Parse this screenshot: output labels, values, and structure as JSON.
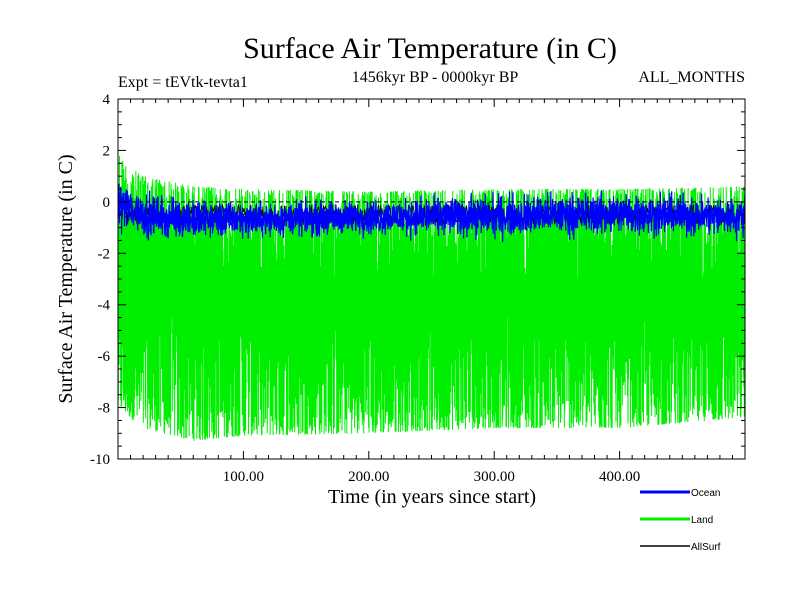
{
  "chart_data": {
    "type": "line",
    "title": "Surface Air Temperature (in C)",
    "subtitle": "1456kyr BP - 0000kyr BP",
    "experiment": "Expt = tEVtk-tevta1",
    "months": "ALL_MONTHS",
    "xlabel": "Time (in years since start)",
    "ylabel": "Surface Air Temperature (in C)",
    "xlim": [
      0,
      500
    ],
    "ylim": [
      -10,
      4
    ],
    "x_ticks": [
      100,
      200,
      300,
      400
    ],
    "x_tick_labels": [
      "100.00",
      "200.00",
      "300.00",
      "400.00"
    ],
    "y_ticks": [
      -10,
      -8,
      -6,
      -4,
      -2,
      0,
      2,
      4
    ],
    "y_tick_labels": [
      "-10",
      "-8",
      "-6",
      "-4",
      "-2",
      "0",
      "2",
      "4"
    ],
    "reference_line": 0,
    "legend_position": "bottom-right",
    "series": [
      {
        "name": "Land",
        "color": "#00ee00",
        "style": "dense-oscillation",
        "upper_envelope": {
          "x": [
            0,
            5,
            20,
            60,
            100,
            200,
            300,
            400,
            500
          ],
          "y": [
            2.0,
            1.5,
            1.0,
            0.6,
            0.5,
            0.4,
            0.5,
            0.5,
            0.6
          ]
        },
        "lower_envelope": {
          "x": [
            0,
            20,
            60,
            100,
            200,
            300,
            400,
            500
          ],
          "y": [
            -8.0,
            -8.8,
            -9.3,
            -9.1,
            -9.0,
            -8.8,
            -8.8,
            -8.4
          ]
        },
        "mean": -3.5
      },
      {
        "name": "Ocean",
        "color": "#0000ff",
        "style": "noisy-line",
        "upper_envelope": {
          "x": [
            0,
            20,
            60,
            100,
            200,
            300,
            400,
            500
          ],
          "y": [
            1.0,
            0.4,
            0.1,
            0.0,
            0.1,
            0.3,
            0.4,
            0.2
          ]
        },
        "lower_envelope": {
          "x": [
            0,
            20,
            60,
            100,
            200,
            300,
            400,
            500
          ],
          "y": [
            -1.0,
            -1.4,
            -1.5,
            -1.4,
            -1.3,
            -1.4,
            -1.3,
            -1.4
          ]
        },
        "mean": -0.5
      },
      {
        "name": "AllSurf",
        "color": "#000000",
        "style": "hidden-under-ocean",
        "mean": -0.5
      }
    ]
  }
}
